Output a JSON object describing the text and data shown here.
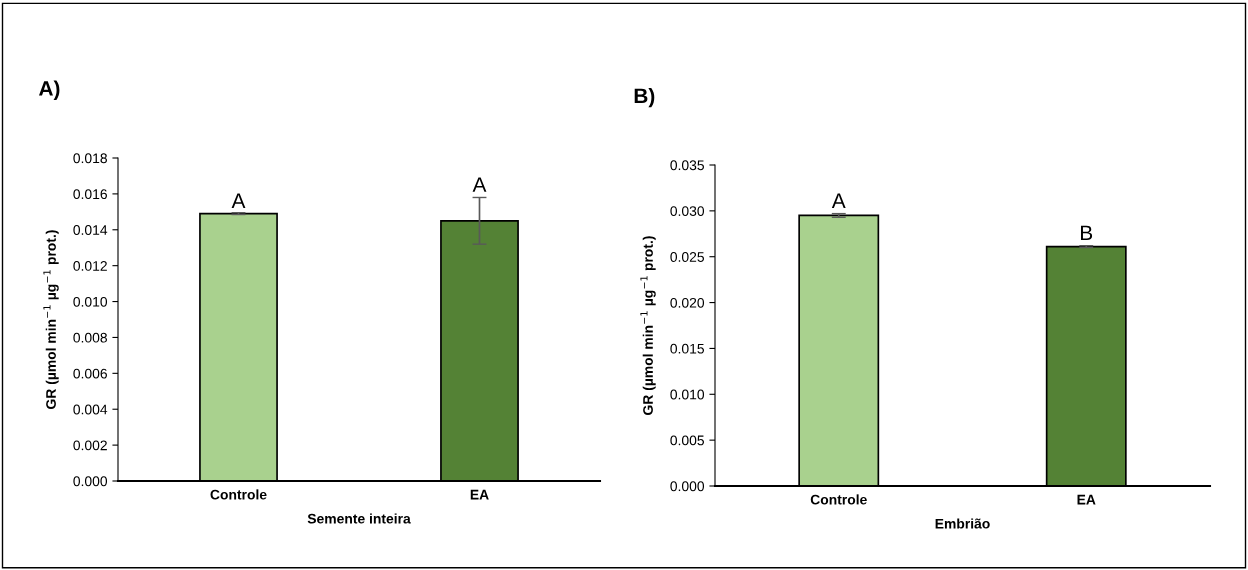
{
  "chart_data": [
    {
      "type": "bar",
      "title": "A)",
      "xlabel": "Semente inteira",
      "ylabel": "GR (µmol min$^{−1}$ µg$^{−1}$ prot.)",
      "categories": [
        "Controle",
        "EA"
      ],
      "values": [
        0.0149,
        0.0145
      ],
      "errors": [
        5e-05,
        0.0013
      ],
      "colors": [
        "#a9d18e",
        "#548235"
      ],
      "ylim": [
        0,
        0.018
      ],
      "yticks": [
        {
          "value": 0,
          "label": "0.000"
        },
        {
          "value": 0.002,
          "label": "0.002"
        },
        {
          "value": 0.004,
          "label": "0.004"
        },
        {
          "value": 0.006,
          "label": "0.006"
        },
        {
          "value": 0.008,
          "label": "0.008"
        },
        {
          "value": 0.01,
          "label": "0.010"
        },
        {
          "value": 0.012,
          "label": "0.012"
        },
        {
          "value": 0.014,
          "label": "0.014"
        },
        {
          "value": 0.016,
          "label": "0.016"
        },
        {
          "value": 0.018,
          "label": "0.018"
        }
      ],
      "grid": false,
      "legend": false,
      "annotations": [
        {
          "text": "A",
          "x": "Controle",
          "y": 0.0149
        },
        {
          "text": "A",
          "x": "EA",
          "y": 0.0158
        }
      ]
    },
    {
      "type": "bar",
      "title": "B)",
      "xlabel": "Embrião",
      "ylabel": "GR (µmol min$^{−1}$ µg$^{−1}$ prot.)",
      "categories": [
        "Controle",
        "EA"
      ],
      "values": [
        0.0295,
        0.0261
      ],
      "errors": [
        0.0002,
        0.0001
      ],
      "colors": [
        "#a9d18e",
        "#548235"
      ],
      "ylim": [
        0,
        0.035
      ],
      "yticks": [
        {
          "value": 0,
          "label": "0.000"
        },
        {
          "value": 0.005,
          "label": "0.005"
        },
        {
          "value": 0.01,
          "label": "0.010"
        },
        {
          "value": 0.015,
          "label": "0.015"
        },
        {
          "value": 0.02,
          "label": "0.020"
        },
        {
          "value": 0.025,
          "label": "0.025"
        },
        {
          "value": 0.03,
          "label": "0.030"
        },
        {
          "value": 0.035,
          "label": "0.035"
        }
      ],
      "grid": false,
      "legend": false,
      "annotations": [
        {
          "text": "A",
          "x": "Controle",
          "y": 0.0297
        },
        {
          "text": "B",
          "x": "EA",
          "y": 0.0262
        }
      ]
    }
  ]
}
